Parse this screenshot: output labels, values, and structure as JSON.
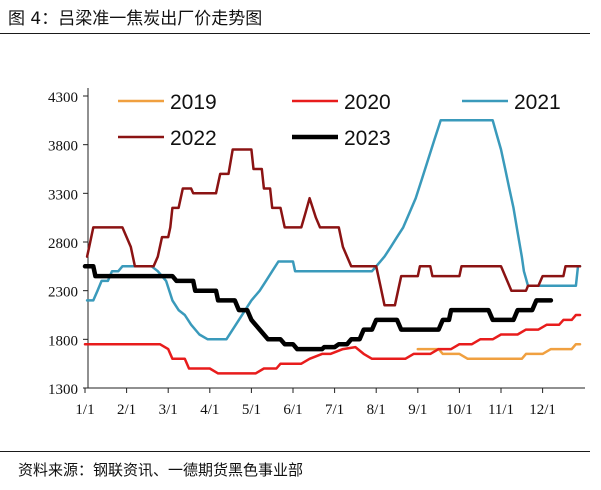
{
  "header": {
    "title": "图 4：吕梁准一焦炭出厂价走势图"
  },
  "footer": {
    "source": "资料来源：钢联资讯、一德期货黑色事业部"
  },
  "chart_data": {
    "type": "line",
    "title": "吕梁准一焦炭出厂价走势图",
    "xlabel": "",
    "ylabel": "",
    "x_ticks": [
      "1/1",
      "2/1",
      "3/1",
      "4/1",
      "5/1",
      "6/1",
      "7/1",
      "8/1",
      "9/1",
      "10/1",
      "11/1",
      "12/1"
    ],
    "y_ticks": [
      1300,
      1800,
      2300,
      2800,
      3300,
      3800,
      4300
    ],
    "xlim": [
      0,
      11.9
    ],
    "ylim": [
      1300,
      4300
    ],
    "legend_position": "top",
    "grid": false,
    "series": [
      {
        "name": "2019",
        "color": "#f0a040",
        "width": 2.5,
        "points": [
          [
            8.0,
            1700
          ],
          [
            8.5,
            1700
          ],
          [
            8.6,
            1650
          ],
          [
            9.0,
            1650
          ],
          [
            9.2,
            1600
          ],
          [
            10.5,
            1600
          ],
          [
            10.6,
            1650
          ],
          [
            11.0,
            1650
          ],
          [
            11.2,
            1700
          ],
          [
            11.7,
            1700
          ],
          [
            11.8,
            1750
          ],
          [
            11.9,
            1750
          ]
        ]
      },
      {
        "name": "2020",
        "color": "#e81c1c",
        "width": 2.5,
        "points": [
          [
            0,
            1750
          ],
          [
            1.8,
            1750
          ],
          [
            2.0,
            1700
          ],
          [
            2.1,
            1600
          ],
          [
            2.4,
            1600
          ],
          [
            2.5,
            1500
          ],
          [
            3.0,
            1500
          ],
          [
            3.2,
            1450
          ],
          [
            4.1,
            1450
          ],
          [
            4.3,
            1500
          ],
          [
            4.6,
            1500
          ],
          [
            4.7,
            1550
          ],
          [
            5.2,
            1550
          ],
          [
            5.4,
            1600
          ],
          [
            5.7,
            1650
          ],
          [
            5.9,
            1650
          ],
          [
            6.2,
            1700
          ],
          [
            6.5,
            1720
          ],
          [
            6.7,
            1650
          ],
          [
            6.9,
            1600
          ],
          [
            7.7,
            1600
          ],
          [
            7.9,
            1650
          ],
          [
            8.3,
            1650
          ],
          [
            8.5,
            1700
          ],
          [
            8.8,
            1700
          ],
          [
            9.0,
            1750
          ],
          [
            9.3,
            1750
          ],
          [
            9.5,
            1800
          ],
          [
            9.8,
            1800
          ],
          [
            10.0,
            1850
          ],
          [
            10.4,
            1850
          ],
          [
            10.6,
            1900
          ],
          [
            10.9,
            1900
          ],
          [
            11.1,
            1950
          ],
          [
            11.4,
            1950
          ],
          [
            11.5,
            2000
          ],
          [
            11.7,
            2000
          ],
          [
            11.8,
            2050
          ],
          [
            11.9,
            2050
          ]
        ]
      },
      {
        "name": "2021",
        "color": "#3a9abb",
        "width": 2.5,
        "points": [
          [
            0.05,
            2200
          ],
          [
            0.2,
            2200
          ],
          [
            0.3,
            2300
          ],
          [
            0.4,
            2400
          ],
          [
            0.55,
            2400
          ],
          [
            0.65,
            2500
          ],
          [
            0.8,
            2500
          ],
          [
            0.9,
            2550
          ],
          [
            1.6,
            2550
          ],
          [
            1.75,
            2500
          ],
          [
            1.95,
            2400
          ],
          [
            2.1,
            2200
          ],
          [
            2.25,
            2100
          ],
          [
            2.4,
            2050
          ],
          [
            2.55,
            1950
          ],
          [
            2.75,
            1850
          ],
          [
            2.95,
            1800
          ],
          [
            3.4,
            1800
          ],
          [
            3.55,
            1900
          ],
          [
            3.7,
            2000
          ],
          [
            3.85,
            2100
          ],
          [
            4.0,
            2200
          ],
          [
            4.2,
            2300
          ],
          [
            4.35,
            2400
          ],
          [
            4.5,
            2500
          ],
          [
            4.65,
            2600
          ],
          [
            5.0,
            2600
          ],
          [
            5.05,
            2500
          ],
          [
            6.9,
            2500
          ],
          [
            7.0,
            2550
          ],
          [
            7.2,
            2650
          ],
          [
            7.35,
            2750
          ],
          [
            7.5,
            2850
          ],
          [
            7.65,
            2950
          ],
          [
            7.8,
            3100
          ],
          [
            7.95,
            3250
          ],
          [
            8.1,
            3450
          ],
          [
            8.25,
            3650
          ],
          [
            8.4,
            3850
          ],
          [
            8.55,
            4050
          ],
          [
            9.8,
            4050
          ],
          [
            9.9,
            3900
          ],
          [
            10.0,
            3750
          ],
          [
            10.1,
            3550
          ],
          [
            10.2,
            3350
          ],
          [
            10.3,
            3150
          ],
          [
            10.4,
            2900
          ],
          [
            10.5,
            2650
          ],
          [
            10.55,
            2500
          ],
          [
            10.65,
            2350
          ],
          [
            11.5,
            2350
          ],
          [
            11.65,
            2350
          ],
          [
            11.8,
            2350
          ],
          [
            11.85,
            2550
          ],
          [
            11.9,
            2550
          ]
        ]
      },
      {
        "name": "2022",
        "color": "#8b1313",
        "width": 2.5,
        "points": [
          [
            0.05,
            2650
          ],
          [
            0.1,
            2750
          ],
          [
            0.2,
            2950
          ],
          [
            0.9,
            2950
          ],
          [
            1.0,
            2850
          ],
          [
            1.1,
            2750
          ],
          [
            1.2,
            2550
          ],
          [
            1.65,
            2550
          ],
          [
            1.75,
            2650
          ],
          [
            1.85,
            2850
          ],
          [
            2.0,
            2850
          ],
          [
            2.05,
            2950
          ],
          [
            2.1,
            3150
          ],
          [
            2.25,
            3150
          ],
          [
            2.35,
            3350
          ],
          [
            2.55,
            3350
          ],
          [
            2.6,
            3300
          ],
          [
            3.15,
            3300
          ],
          [
            3.25,
            3500
          ],
          [
            3.45,
            3500
          ],
          [
            3.55,
            3750
          ],
          [
            4.0,
            3750
          ],
          [
            4.05,
            3550
          ],
          [
            4.25,
            3550
          ],
          [
            4.3,
            3350
          ],
          [
            4.45,
            3350
          ],
          [
            4.5,
            3150
          ],
          [
            4.7,
            3150
          ],
          [
            4.8,
            2950
          ],
          [
            5.2,
            2950
          ],
          [
            5.3,
            3100
          ],
          [
            5.4,
            3250
          ],
          [
            5.55,
            3050
          ],
          [
            5.65,
            2950
          ],
          [
            6.1,
            2950
          ],
          [
            6.2,
            2750
          ],
          [
            6.4,
            2550
          ],
          [
            7.0,
            2550
          ],
          [
            7.1,
            2350
          ],
          [
            7.2,
            2150
          ],
          [
            7.45,
            2150
          ],
          [
            7.55,
            2350
          ],
          [
            7.6,
            2450
          ],
          [
            8.0,
            2450
          ],
          [
            8.05,
            2550
          ],
          [
            8.3,
            2550
          ],
          [
            8.35,
            2450
          ],
          [
            9.0,
            2450
          ],
          [
            9.05,
            2550
          ],
          [
            10.0,
            2550
          ],
          [
            10.1,
            2450
          ],
          [
            10.25,
            2300
          ],
          [
            10.6,
            2300
          ],
          [
            10.65,
            2350
          ],
          [
            10.9,
            2350
          ],
          [
            11.0,
            2450
          ],
          [
            11.5,
            2450
          ],
          [
            11.55,
            2550
          ],
          [
            11.9,
            2550
          ]
        ]
      },
      {
        "name": "2023",
        "color": "#000000",
        "width": 4.5,
        "points": [
          [
            0,
            2550
          ],
          [
            0.2,
            2550
          ],
          [
            0.25,
            2450
          ],
          [
            2.1,
            2450
          ],
          [
            2.2,
            2400
          ],
          [
            2.6,
            2400
          ],
          [
            2.65,
            2300
          ],
          [
            3.15,
            2300
          ],
          [
            3.2,
            2200
          ],
          [
            3.6,
            2200
          ],
          [
            3.7,
            2100
          ],
          [
            3.9,
            2100
          ],
          [
            4.0,
            2000
          ],
          [
            4.2,
            1900
          ],
          [
            4.4,
            1800
          ],
          [
            4.7,
            1800
          ],
          [
            4.8,
            1750
          ],
          [
            5.0,
            1750
          ],
          [
            5.1,
            1700
          ],
          [
            5.7,
            1700
          ],
          [
            5.75,
            1720
          ],
          [
            6.0,
            1720
          ],
          [
            6.1,
            1750
          ],
          [
            6.3,
            1750
          ],
          [
            6.4,
            1800
          ],
          [
            6.6,
            1800
          ],
          [
            6.7,
            1900
          ],
          [
            6.9,
            1900
          ],
          [
            7.0,
            2000
          ],
          [
            7.5,
            2000
          ],
          [
            7.6,
            1900
          ],
          [
            8.5,
            1900
          ],
          [
            8.6,
            2000
          ],
          [
            8.75,
            2000
          ],
          [
            8.8,
            2100
          ],
          [
            9.7,
            2100
          ],
          [
            9.8,
            2000
          ],
          [
            10.3,
            2000
          ],
          [
            10.4,
            2100
          ],
          [
            10.75,
            2100
          ],
          [
            10.85,
            2200
          ],
          [
            11.2,
            2200
          ]
        ]
      }
    ]
  }
}
